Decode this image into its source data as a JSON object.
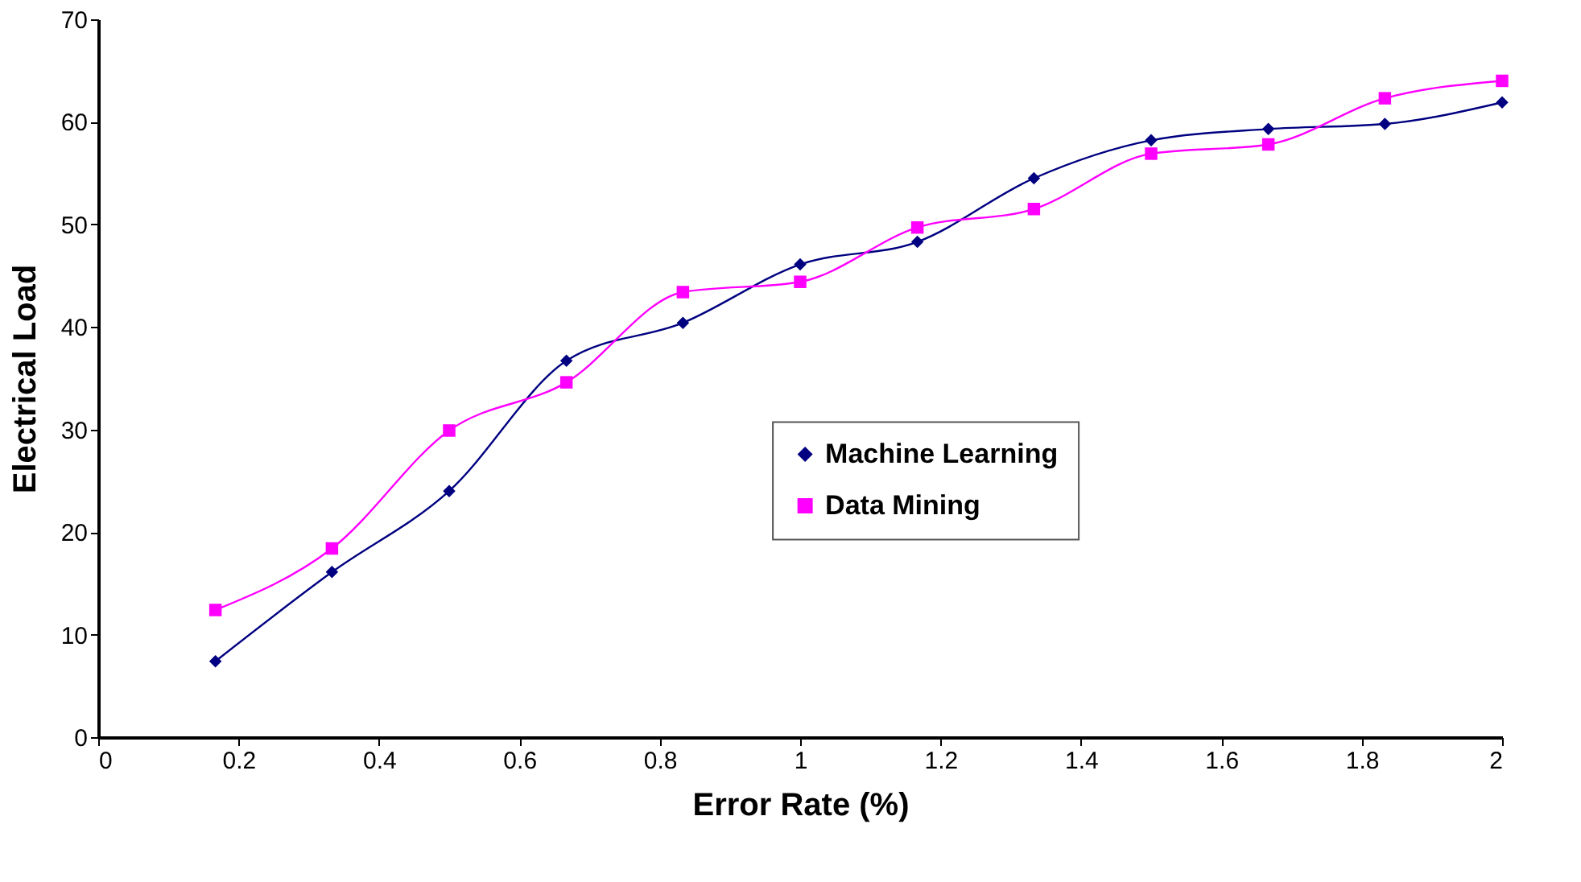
{
  "chart_data": {
    "type": "line",
    "xlabel": "Error Rate (%)",
    "ylabel": "Electrical Load",
    "x": [
      0.167,
      0.333,
      0.5,
      0.667,
      0.833,
      1,
      1.167,
      1.333,
      1.5,
      1.667,
      1.833,
      2
    ],
    "series": [
      {
        "name": "Machine Learning",
        "color": "#000080",
        "marker": "diamond",
        "values": [
          7.4,
          16.1,
          24.0,
          36.7,
          40.4,
          46.1,
          48.3,
          54.5,
          58.2,
          59.3,
          59.8,
          61.9
        ]
      },
      {
        "name": "Data Mining",
        "color": "#ff00ff",
        "marker": "square",
        "values": [
          12.4,
          18.4,
          29.9,
          34.6,
          43.4,
          44.4,
          49.7,
          51.5,
          56.9,
          57.8,
          62.3,
          64.0
        ]
      }
    ],
    "xlim": [
      0,
      2
    ],
    "xticks": [
      0,
      0.2,
      0.4,
      0.6,
      0.8,
      1,
      1.2,
      1.4,
      1.6,
      1.8,
      2
    ],
    "ylim": [
      0,
      70
    ],
    "yticks": [
      0,
      10,
      20,
      30,
      40,
      50,
      60,
      70
    ],
    "grid": false,
    "legend": "right"
  }
}
